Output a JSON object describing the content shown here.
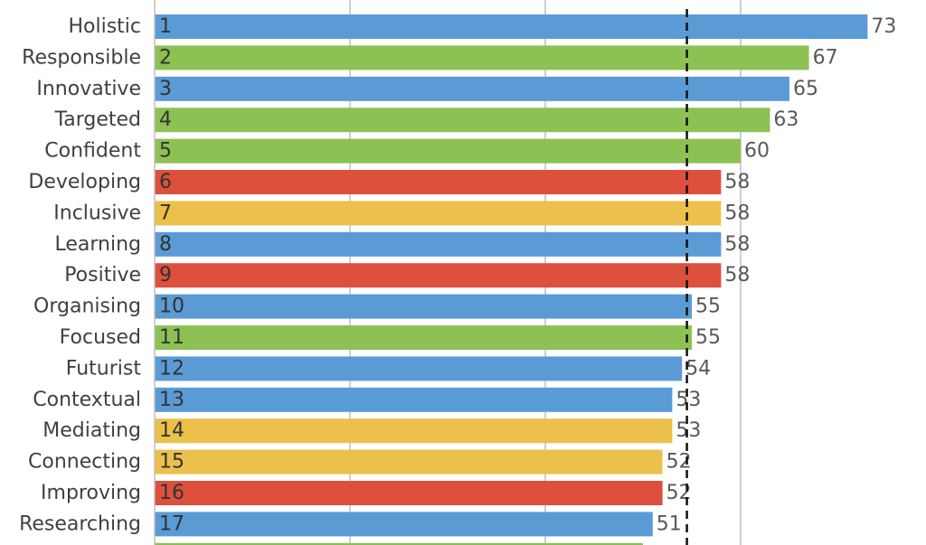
{
  "chart_data": {
    "type": "bar",
    "orientation": "horizontal",
    "categories": [
      "Holistic",
      "Responsible",
      "Innovative",
      "Targeted",
      "Confident",
      "Developing",
      "Inclusive",
      "Learning",
      "Positive",
      "Organising",
      "Focused",
      "Futurist",
      "Contextual",
      "Mediating",
      "Connecting",
      "Improving",
      "Researching"
    ],
    "ranks": [
      "1",
      "2",
      "3",
      "4",
      "5",
      "6",
      "7",
      "8",
      "9",
      "10",
      "11",
      "12",
      "13",
      "14",
      "15",
      "16",
      "17"
    ],
    "values": [
      73,
      67,
      65,
      63,
      60,
      58,
      58,
      58,
      58,
      55,
      55,
      54,
      53,
      53,
      52,
      52,
      51
    ],
    "bar_colors": [
      "#5b9bd5",
      "#8dc153",
      "#5b9bd5",
      "#8dc153",
      "#8dc153",
      "#dd503d",
      "#ebc04b",
      "#5b9bd5",
      "#dd503d",
      "#5b9bd5",
      "#8dc153",
      "#5b9bd5",
      "#5b9bd5",
      "#ebc04b",
      "#ebc04b",
      "#dd503d",
      "#5b9bd5"
    ],
    "xlim": [
      0,
      80
    ],
    "grid_x": [
      20,
      40,
      60
    ],
    "reference_line": 54.5,
    "partial_next_bar": {
      "value": 50,
      "color": "#8dc153"
    },
    "title": "",
    "xlabel": "",
    "ylabel": ""
  }
}
